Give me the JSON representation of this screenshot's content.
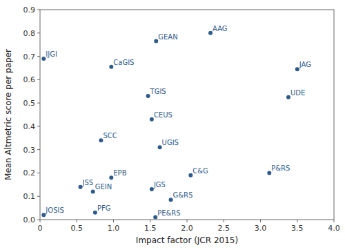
{
  "chart_data": {
    "type": "scatter",
    "xlabel": "Impact factor (JCR 2015)",
    "ylabel": "Mean Altmetric score per paper",
    "labels": [
      "JOSIS",
      "IJGI",
      "PFG",
      "JSS",
      "GEIN",
      "EPB",
      "CaGIS",
      "SCC",
      "TGIS",
      "CEUS",
      "UGIS",
      "JGS",
      "GEAN",
      "PE&RS",
      "G&RS",
      "C&G",
      "AAG",
      "P&RS",
      "UDE",
      "JAG"
    ],
    "x": [
      0.05,
      0.05,
      0.75,
      0.55,
      0.72,
      0.97,
      0.97,
      0.83,
      1.47,
      1.52,
      1.63,
      1.52,
      1.58,
      1.57,
      1.78,
      2.05,
      2.32,
      3.12,
      3.38,
      3.5
    ],
    "values": [
      0.02,
      0.69,
      0.03,
      0.14,
      0.12,
      0.18,
      0.655,
      0.34,
      0.53,
      0.43,
      0.31,
      0.13,
      0.765,
      0.01,
      0.085,
      0.19,
      0.8,
      0.2,
      0.525,
      0.645
    ],
    "color": "#2E5B8A",
    "xlim": [
      0.0,
      4.0
    ],
    "ylim": [
      0.0,
      0.9
    ],
    "xticks": [
      0,
      0.5,
      {
        "value": 1,
        "label": "1.0"
      },
      1.5,
      {
        "value": 2,
        "label": "2.0"
      },
      2.5,
      {
        "value": 3,
        "label": "3.0"
      },
      3.5,
      {
        "value": 4,
        "label": "4.0"
      }
    ],
    "yticks": [
      {
        "value": 0,
        "label": "0.0"
      },
      0.1,
      0.2,
      0.3,
      0.4,
      0.5,
      0.6,
      0.7,
      0.8,
      0.9
    ],
    "grid": false
  }
}
